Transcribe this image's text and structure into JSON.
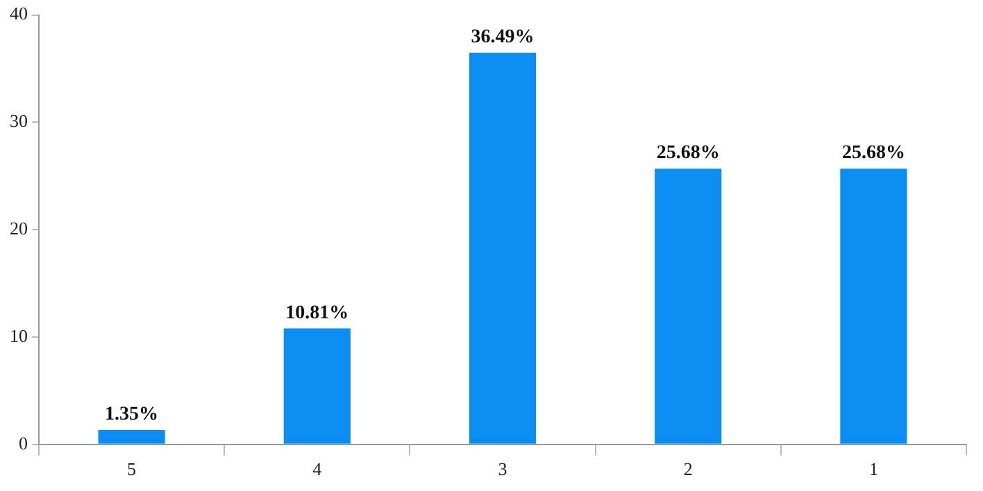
{
  "chart_data": {
    "type": "bar",
    "categories": [
      "5",
      "4",
      "3",
      "2",
      "1"
    ],
    "values": [
      1.35,
      10.81,
      36.49,
      25.68,
      25.68
    ],
    "color": "#0a8ef2",
    "value_labels": [
      "1.35%",
      "10.81%",
      "36.49%",
      "25.68%",
      "25.68%"
    ],
    "ylim": [
      0,
      40
    ],
    "yticks": [
      0,
      10,
      20,
      30,
      40
    ],
    "grid": false,
    "legend": false
  }
}
